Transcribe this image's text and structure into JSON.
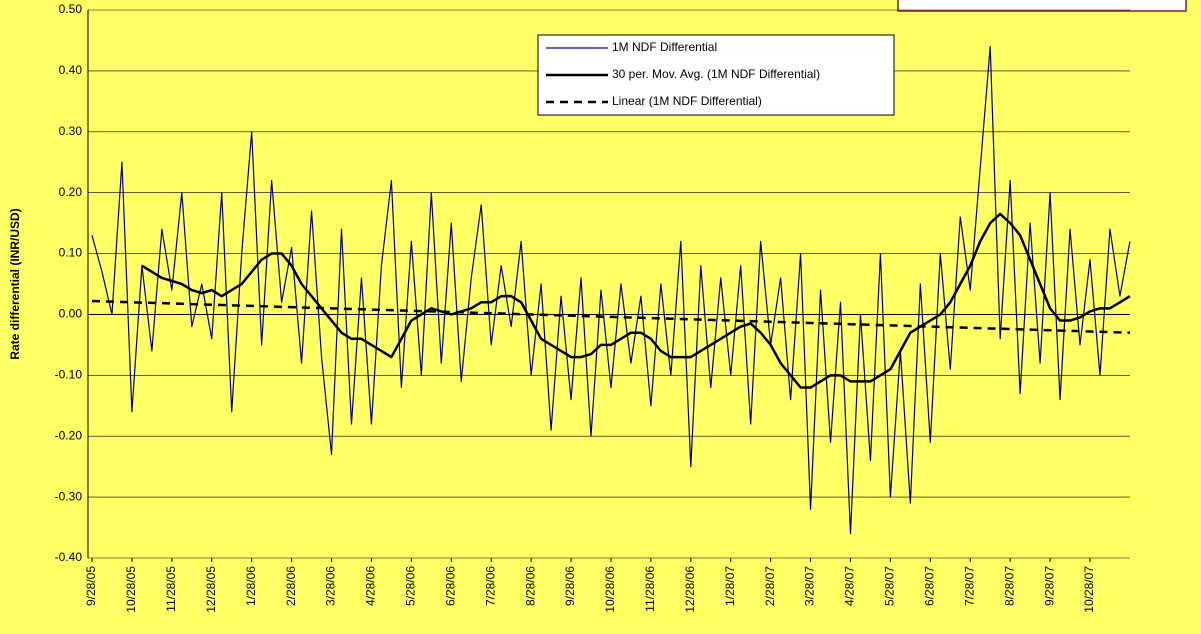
{
  "chart_data": {
    "type": "line",
    "y_label": "Rate differential (INR/USD)",
    "categories": [
      "9/28/05",
      null,
      null,
      null,
      "10/28/05",
      null,
      null,
      null,
      "11/28/05",
      null,
      null,
      null,
      "12/28/05",
      null,
      null,
      null,
      "1/28/06",
      null,
      null,
      null,
      "2/28/06",
      null,
      null,
      null,
      "3/28/06",
      null,
      null,
      null,
      "4/28/06",
      null,
      null,
      null,
      "5/28/06",
      null,
      null,
      null,
      "6/28/06",
      null,
      null,
      null,
      "7/28/06",
      null,
      null,
      null,
      "8/28/06",
      null,
      null,
      null,
      "9/28/06",
      null,
      null,
      null,
      "10/28/06",
      null,
      null,
      null,
      "11/28/06",
      null,
      null,
      null,
      "12/28/06",
      null,
      null,
      null,
      "1/28/07",
      null,
      null,
      null,
      "2/28/07",
      null,
      null,
      null,
      "3/28/07",
      null,
      null,
      null,
      "4/28/07",
      null,
      null,
      null,
      "5/28/07",
      null,
      null,
      null,
      "6/28/07",
      null,
      null,
      null,
      "7/28/07",
      null,
      null,
      null,
      "8/28/07",
      null,
      null,
      null,
      "9/28/07",
      null,
      null,
      null,
      "10/28/07",
      null,
      null,
      null,
      null
    ],
    "series": [
      {
        "name": "1M NDF Differential",
        "color": "#000080",
        "line_width": 1.2,
        "dashed": false,
        "values": [
          0.13,
          0.07,
          0.0,
          0.25,
          -0.16,
          0.08,
          -0.06,
          0.14,
          0.04,
          0.2,
          -0.02,
          0.05,
          -0.04,
          0.2,
          -0.16,
          0.1,
          0.3,
          -0.05,
          0.22,
          0.02,
          0.11,
          -0.08,
          0.17,
          -0.07,
          -0.23,
          0.14,
          -0.18,
          0.06,
          -0.18,
          0.08,
          0.22,
          -0.12,
          0.12,
          -0.1,
          0.2,
          -0.08,
          0.15,
          -0.11,
          0.06,
          0.18,
          -0.05,
          0.08,
          -0.02,
          0.12,
          -0.1,
          0.05,
          -0.19,
          0.03,
          -0.14,
          0.06,
          -0.2,
          0.04,
          -0.12,
          0.05,
          -0.08,
          0.03,
          -0.15,
          0.05,
          -0.1,
          0.12,
          -0.25,
          0.08,
          -0.12,
          0.06,
          -0.1,
          0.08,
          -0.18,
          0.12,
          -0.05,
          0.06,
          -0.14,
          0.1,
          -0.32,
          0.04,
          -0.21,
          0.02,
          -0.36,
          0.0,
          -0.24,
          0.1,
          -0.3,
          -0.06,
          -0.31,
          0.05,
          -0.21,
          0.1,
          -0.09,
          0.16,
          0.04,
          0.24,
          0.44,
          -0.04,
          0.22,
          -0.13,
          0.15,
          -0.08,
          0.2,
          -0.14,
          0.14,
          -0.05,
          0.09,
          -0.1,
          0.14,
          0.03,
          0.12
        ]
      },
      {
        "name": "30 per. Mov. Avg. (1M NDF Differential)",
        "color": "#000000",
        "line_width": 2.5,
        "dashed": false,
        "values": [
          null,
          null,
          null,
          null,
          null,
          0.08,
          0.07,
          0.06,
          0.055,
          0.05,
          0.04,
          0.035,
          0.04,
          0.03,
          0.04,
          0.05,
          0.07,
          0.09,
          0.1,
          0.1,
          0.08,
          0.05,
          0.03,
          0.01,
          -0.01,
          -0.03,
          -0.04,
          -0.04,
          -0.05,
          -0.06,
          -0.07,
          -0.04,
          -0.01,
          0.0,
          0.01,
          0.005,
          0.0,
          0.005,
          0.01,
          0.02,
          0.02,
          0.03,
          0.03,
          0.02,
          -0.01,
          -0.04,
          -0.05,
          -0.06,
          -0.07,
          -0.07,
          -0.065,
          -0.05,
          -0.05,
          -0.04,
          -0.03,
          -0.03,
          -0.04,
          -0.06,
          -0.07,
          -0.07,
          -0.07,
          -0.06,
          -0.05,
          -0.04,
          -0.03,
          -0.02,
          -0.015,
          -0.03,
          -0.05,
          -0.08,
          -0.1,
          -0.12,
          -0.12,
          -0.11,
          -0.1,
          -0.1,
          -0.11,
          -0.11,
          -0.11,
          -0.1,
          -0.09,
          -0.06,
          -0.03,
          -0.02,
          -0.01,
          0.0,
          0.02,
          0.05,
          0.08,
          0.12,
          0.15,
          0.165,
          0.15,
          0.13,
          0.09,
          0.05,
          0.01,
          -0.01,
          -0.01,
          -0.005,
          0.005,
          0.01,
          0.01,
          0.02,
          0.03
        ]
      },
      {
        "name": "Linear (1M NDF Differential)",
        "color": "#000000",
        "line_width": 2.5,
        "dashed": true,
        "values": [
          0.022,
          0.0215,
          0.021,
          0.0205,
          0.02,
          0.0195,
          0.019,
          0.0185,
          0.018,
          0.0175,
          0.017,
          0.0165,
          0.016,
          0.0155,
          0.015,
          0.0145,
          0.014,
          0.0135,
          0.013,
          0.0125,
          0.012,
          0.0115,
          0.011,
          0.0105,
          0.01,
          0.0095,
          0.009,
          0.0085,
          0.008,
          0.0075,
          0.007,
          0.0065,
          0.006,
          0.0055,
          0.005,
          0.0045,
          0.004,
          0.0035,
          0.003,
          0.0025,
          0.002,
          0.0015,
          0.001,
          0.0005,
          0,
          -0.0005,
          -0.001,
          -0.0015,
          -0.002,
          -0.0025,
          -0.003,
          -0.0035,
          -0.004,
          -0.0045,
          -0.005,
          -0.0055,
          -0.006,
          -0.0065,
          -0.007,
          -0.0075,
          -0.008,
          -0.0085,
          -0.009,
          -0.0095,
          -0.01,
          -0.0105,
          -0.011,
          -0.0115,
          -0.012,
          -0.0125,
          -0.013,
          -0.0135,
          -0.014,
          -0.0145,
          -0.015,
          -0.0155,
          -0.016,
          -0.0165,
          -0.017,
          -0.0175,
          -0.018,
          -0.0185,
          -0.019,
          -0.0195,
          -0.02,
          -0.0205,
          -0.021,
          -0.0215,
          -0.022,
          -0.0225,
          -0.023,
          -0.0235,
          -0.024,
          -0.0245,
          -0.025,
          -0.0255,
          -0.026,
          -0.0265,
          -0.027,
          -0.0275,
          -0.028,
          -0.0285,
          -0.029,
          -0.0295,
          -0.03
        ]
      }
    ],
    "ylim": [
      -0.4,
      0.5
    ],
    "yticks": [
      {
        "value": -0.4,
        "label": "-0.40"
      },
      {
        "value": -0.3,
        "label": "-0.30"
      },
      {
        "value": -0.2,
        "label": "-0.20"
      },
      {
        "value": -0.1,
        "label": "-0.10"
      },
      {
        "value": 0,
        "label": "0.00"
      },
      {
        "value": 0.1,
        "label": "0.10"
      },
      {
        "value": 0.2,
        "label": "0.20"
      },
      {
        "value": 0.3,
        "label": "0.30"
      },
      {
        "value": 0.4,
        "label": "0.40"
      },
      {
        "value": 0.5,
        "label": "0.50"
      }
    ],
    "grid": true
  }
}
